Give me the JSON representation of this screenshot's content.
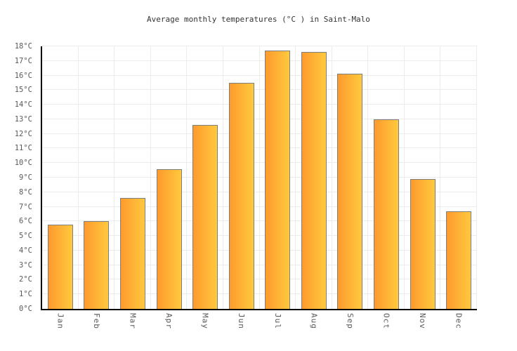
{
  "title": "Average monthly temperatures (°C ) in Saint-Malo",
  "chart_data": {
    "type": "bar",
    "title": "Average monthly temperatures (°C ) in Saint-Malo",
    "categories": [
      "Jan",
      "Feb",
      "Mar",
      "Apr",
      "May",
      "Jun",
      "Jul",
      "Aug",
      "Sep",
      "Oct",
      "Nov",
      "Dec"
    ],
    "values": [
      5.8,
      6.0,
      7.6,
      9.6,
      12.6,
      15.5,
      17.7,
      17.6,
      16.1,
      13.0,
      8.9,
      6.7
    ],
    "xlabel": "",
    "ylabel": "",
    "ylim": [
      0,
      18
    ],
    "ytick_step": 1,
    "yticks": [
      "0°C",
      "1°C",
      "2°C",
      "3°C",
      "4°C",
      "5°C",
      "6°C",
      "7°C",
      "8°C",
      "9°C",
      "10°C",
      "11°C",
      "12°C",
      "13°C",
      "14°C",
      "15°C",
      "16°C",
      "17°C",
      "18°C"
    ],
    "grid": true,
    "legend": false
  },
  "colors": {
    "background": "#ffffff",
    "bar_gradient_left": "#fe9a2d",
    "bar_gradient_right": "#ffc93e",
    "bar_border": "#7e7e7e",
    "gridline": "#ececec",
    "axis": "#000000",
    "tick_label": "#5a5a5a",
    "title_text": "#333333"
  }
}
